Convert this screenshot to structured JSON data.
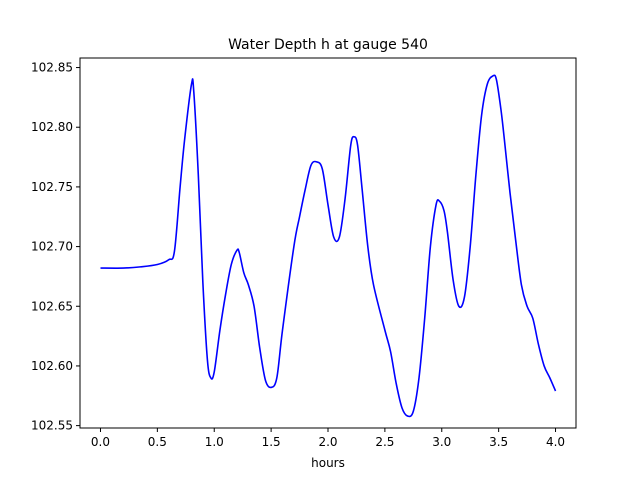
{
  "chart_data": {
    "type": "line",
    "title": "Water Depth h at gauge 540",
    "xlabel": "hours",
    "ylabel": "",
    "xlim": [
      -0.18,
      4.18
    ],
    "ylim": [
      102.548,
      102.858
    ],
    "xticks": [
      0.0,
      0.5,
      1.0,
      1.5,
      2.0,
      2.5,
      3.0,
      3.5,
      4.0
    ],
    "xtick_labels": [
      "0.0",
      "0.5",
      "1.0",
      "1.5",
      "2.0",
      "2.5",
      "3.0",
      "3.5",
      "4.0"
    ],
    "yticks": [
      102.55,
      102.6,
      102.65,
      102.7,
      102.75,
      102.8,
      102.85
    ],
    "ytick_labels": [
      "102.55",
      "102.60",
      "102.65",
      "102.70",
      "102.75",
      "102.80",
      "102.85"
    ],
    "grid": false,
    "series": [
      {
        "color": "#0000ff",
        "x": [
          0.0,
          0.2,
          0.35,
          0.5,
          0.6,
          0.65,
          0.7,
          0.74,
          0.8,
          0.82,
          0.86,
          0.9,
          0.94,
          0.97,
          1.0,
          1.05,
          1.1,
          1.15,
          1.2,
          1.22,
          1.26,
          1.3,
          1.35,
          1.4,
          1.45,
          1.5,
          1.55,
          1.6,
          1.7,
          1.75,
          1.8,
          1.85,
          1.9,
          1.95,
          2.0,
          2.05,
          2.1,
          2.15,
          2.2,
          2.23,
          2.26,
          2.3,
          2.35,
          2.4,
          2.5,
          2.55,
          2.6,
          2.65,
          2.7,
          2.75,
          2.8,
          2.85,
          2.9,
          2.95,
          2.98,
          3.02,
          3.05,
          3.1,
          3.15,
          3.2,
          3.25,
          3.3,
          3.35,
          3.4,
          3.45,
          3.48,
          3.52,
          3.55,
          3.6,
          3.65,
          3.7,
          3.75,
          3.8,
          3.85,
          3.9,
          3.95,
          4.0
        ],
        "y": [
          102.682,
          102.682,
          102.683,
          102.685,
          102.689,
          102.696,
          102.75,
          102.79,
          102.836,
          102.83,
          102.76,
          102.67,
          102.605,
          102.59,
          102.595,
          102.63,
          102.66,
          102.685,
          102.697,
          102.695,
          102.678,
          102.668,
          102.65,
          102.615,
          102.588,
          102.582,
          102.59,
          102.63,
          102.7,
          102.725,
          102.748,
          102.768,
          102.771,
          102.765,
          102.735,
          102.708,
          102.708,
          102.74,
          102.785,
          102.792,
          102.785,
          102.748,
          102.7,
          102.668,
          102.63,
          102.612,
          102.585,
          102.565,
          102.558,
          102.562,
          102.59,
          102.64,
          102.7,
          102.735,
          102.738,
          102.73,
          102.712,
          102.672,
          102.65,
          102.658,
          102.7,
          102.76,
          102.81,
          102.836,
          102.843,
          102.84,
          102.815,
          102.79,
          102.745,
          102.705,
          102.668,
          102.65,
          102.64,
          102.618,
          102.6,
          102.59,
          102.579
        ]
      }
    ]
  }
}
